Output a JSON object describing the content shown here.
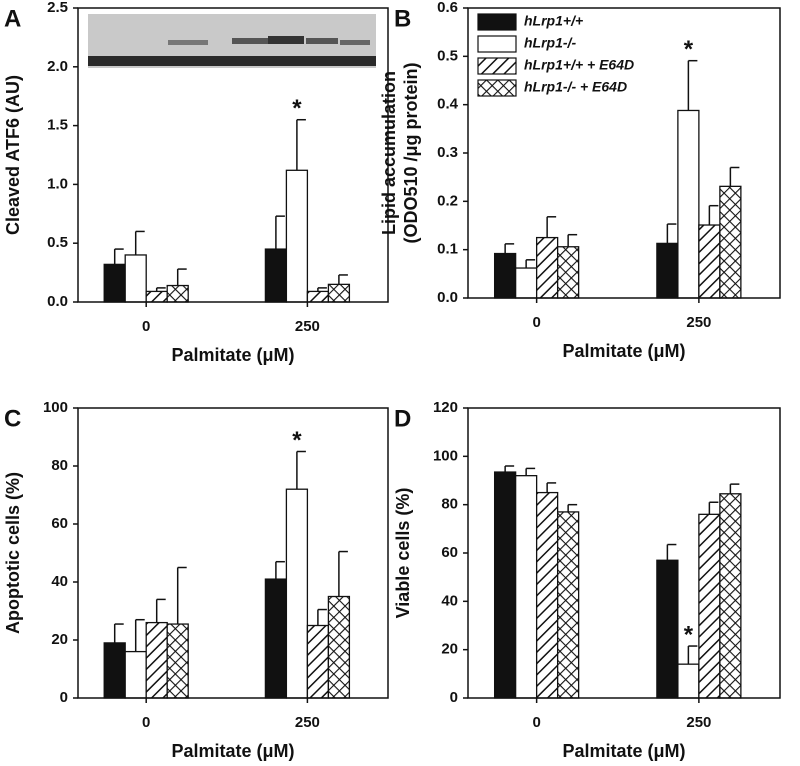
{
  "chart_data": [
    {
      "type": "bar",
      "panel": "A",
      "ylabel": [
        "Cleaved ATF6 (AU)"
      ],
      "xlabel": "Palmitate (μM)",
      "categories": [
        "0",
        "250"
      ],
      "ylim": [
        0,
        2.5
      ],
      "yticks": [
        {
          "value": 0,
          "label": "0.0"
        },
        0.5,
        {
          "value": 1,
          "label": "1.0"
        },
        1.5,
        {
          "value": 2,
          "label": "2.0"
        },
        2.5
      ],
      "series": [
        {
          "fill": "solid",
          "values": [
            0.32,
            0.45
          ],
          "errors": [
            0.13,
            0.28
          ],
          "annotations": [
            null,
            null
          ]
        },
        {
          "fill": "none",
          "values": [
            0.4,
            1.12
          ],
          "errors": [
            0.2,
            0.43
          ],
          "annotations": [
            null,
            "*"
          ]
        },
        {
          "fill": "hatch",
          "values": [
            0.09,
            0.09
          ],
          "errors": [
            0.03,
            0.03
          ],
          "annotations": [
            null,
            null
          ]
        },
        {
          "fill": "crosshatch",
          "values": [
            0.14,
            0.15
          ],
          "errors": [
            0.14,
            0.08
          ],
          "annotations": [
            null,
            null
          ]
        }
      ]
    },
    {
      "type": "bar",
      "panel": "B",
      "ylabel": [
        "Lipid accumulation",
        "(ODO510 /μg protein)"
      ],
      "xlabel": "Palmitate (μM)",
      "categories": [
        "0",
        "250"
      ],
      "ylim": [
        0,
        0.6
      ],
      "yticks": [
        {
          "value": 0,
          "label": "0.0"
        },
        0.1,
        0.2,
        0.3,
        0.4,
        0.5,
        0.6
      ],
      "legend": "upper left",
      "series": [
        {
          "name": "hLrp1+/+",
          "fill": "solid",
          "values": [
            0.092,
            0.113
          ],
          "errors": [
            0.02,
            0.04
          ],
          "annotations": [
            null,
            null
          ]
        },
        {
          "name": "hLrp1-/-",
          "fill": "none",
          "values": [
            0.062,
            0.388
          ],
          "errors": [
            0.017,
            0.103
          ],
          "annotations": [
            null,
            "*"
          ]
        },
        {
          "name": "hLrp1+/+ + E64D",
          "fill": "hatch",
          "values": [
            0.125,
            0.151
          ],
          "errors": [
            0.043,
            0.04
          ],
          "annotations": [
            null,
            null
          ]
        },
        {
          "name": "hLrp1-/- + E64D",
          "fill": "crosshatch",
          "values": [
            0.106,
            0.231
          ],
          "errors": [
            0.025,
            0.039
          ],
          "annotations": [
            null,
            null
          ]
        }
      ]
    },
    {
      "type": "bar",
      "panel": "C",
      "ylabel": [
        "Apoptotic cells (%)"
      ],
      "xlabel": "Palmitate (μM)",
      "categories": [
        "0",
        "250"
      ],
      "ylim": [
        0,
        100
      ],
      "yticks": [
        0,
        20,
        40,
        60,
        80,
        100
      ],
      "series": [
        {
          "fill": "solid",
          "values": [
            19,
            41
          ],
          "errors": [
            6.5,
            6
          ],
          "annotations": [
            null,
            null
          ]
        },
        {
          "fill": "none",
          "values": [
            16,
            72
          ],
          "errors": [
            11,
            13
          ],
          "annotations": [
            null,
            "*"
          ]
        },
        {
          "fill": "hatch",
          "values": [
            26,
            25
          ],
          "errors": [
            8,
            5.5
          ],
          "annotations": [
            null,
            null
          ]
        },
        {
          "fill": "crosshatch",
          "values": [
            25.5,
            35
          ],
          "errors": [
            19.5,
            15.5
          ],
          "annotations": [
            null,
            null
          ]
        }
      ]
    },
    {
      "type": "bar",
      "panel": "D",
      "ylabel": [
        "Viable cells (%)"
      ],
      "xlabel": "Palmitate (μM)",
      "categories": [
        "0",
        "250"
      ],
      "ylim": [
        0,
        120
      ],
      "yticks": [
        0,
        20,
        40,
        60,
        80,
        100,
        120
      ],
      "series": [
        {
          "fill": "solid",
          "values": [
            93.5,
            57
          ],
          "errors": [
            2.5,
            6.5
          ],
          "annotations": [
            null,
            null
          ]
        },
        {
          "fill": "none",
          "values": [
            92,
            14
          ],
          "errors": [
            3,
            7.5
          ],
          "annotations": [
            null,
            "*"
          ]
        },
        {
          "fill": "hatch",
          "values": [
            85,
            76
          ],
          "errors": [
            4,
            5
          ],
          "annotations": [
            null,
            null
          ]
        },
        {
          "fill": "crosshatch",
          "values": [
            77,
            84.5
          ],
          "errors": [
            3,
            4
          ],
          "annotations": [
            null,
            null
          ]
        }
      ]
    }
  ]
}
